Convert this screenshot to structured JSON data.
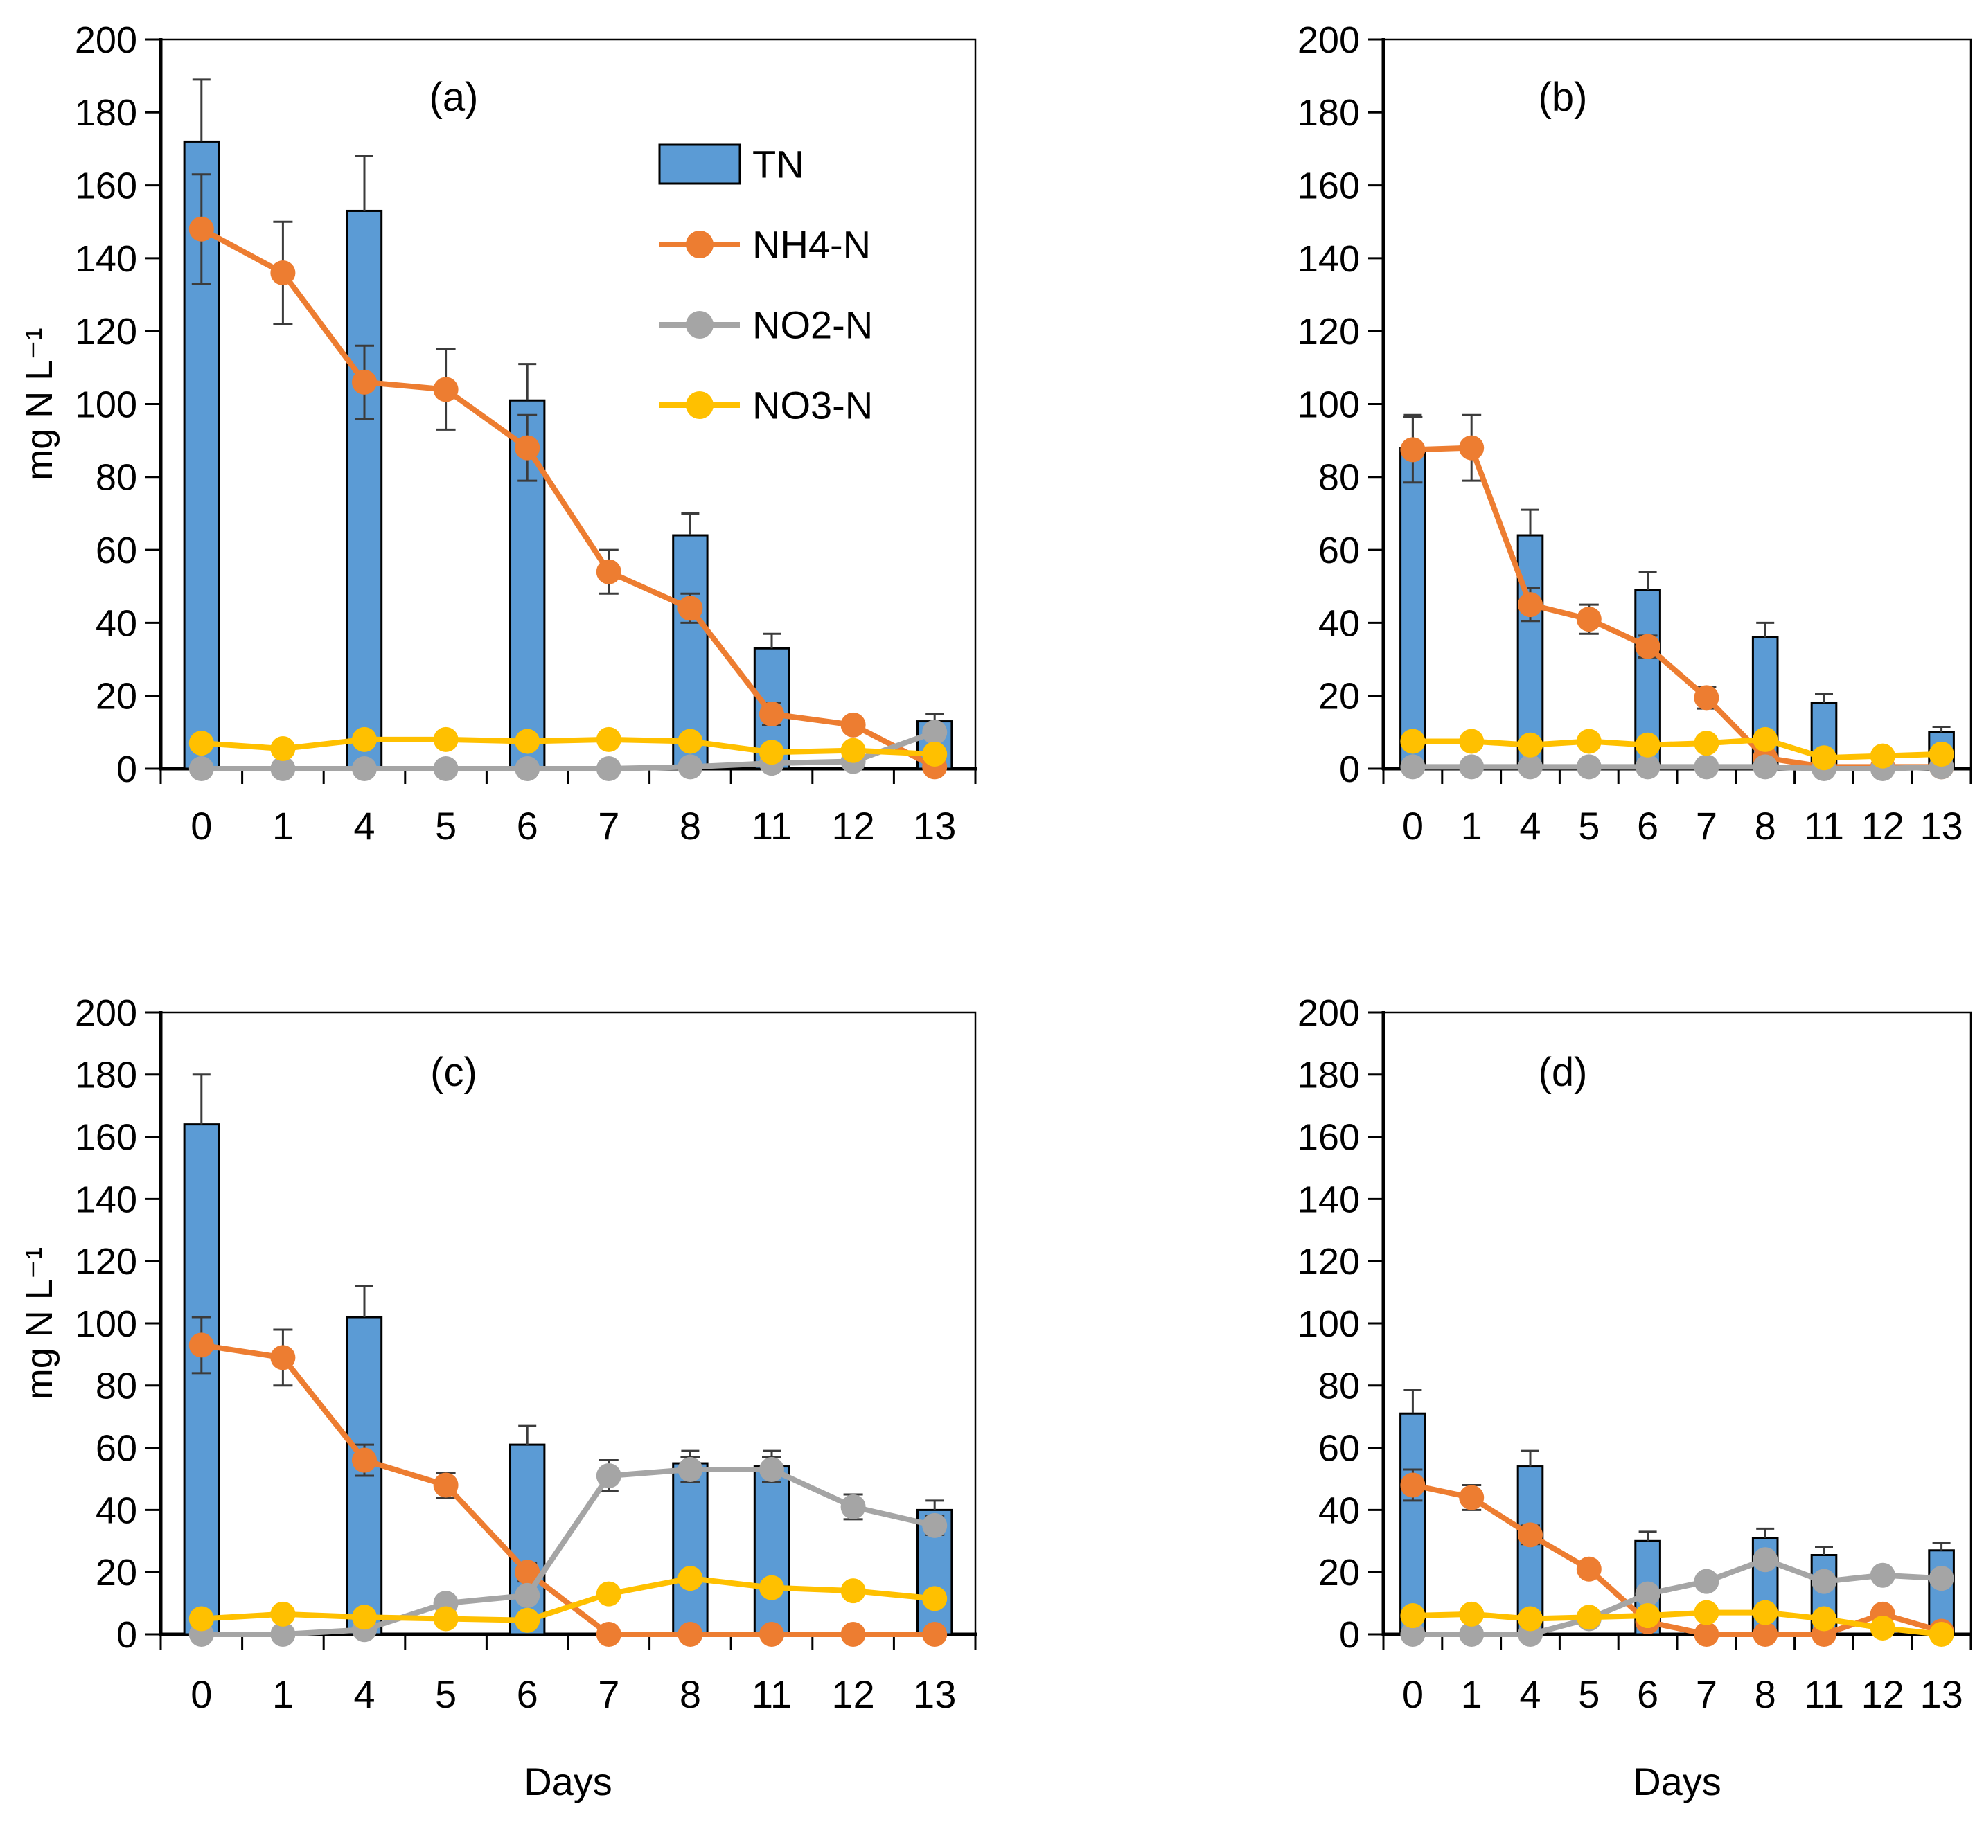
{
  "figure": {
    "background": "#ffffff",
    "description": "Four-panel nitrogen species chart: TN bars with NH4-N, NO2-N, NO3-N lines versus days"
  },
  "colors": {
    "tn": "#5B9BD5",
    "tn_border": "#000000",
    "nh4": "#ED7D31",
    "no2": "#A5A5A5",
    "no3": "#FFC000",
    "error_bar": "#3B3B3B",
    "axis": "#000000",
    "text": "#000000"
  },
  "legend": {
    "items": [
      {
        "series": "tn",
        "label": "TN"
      },
      {
        "series": "nh4",
        "label": "NH4-N"
      },
      {
        "series": "no2",
        "label": "NO2-N"
      },
      {
        "series": "no3",
        "label": "NO3-N"
      }
    ]
  },
  "axes": {
    "y_min": 0,
    "y_max": 200,
    "y_step": 20,
    "y_label": "mg N L⁻¹",
    "x_label": "Days",
    "x_categories": [
      "0",
      "1",
      "4",
      "5",
      "6",
      "7",
      "8",
      "11",
      "12",
      "13"
    ]
  },
  "chart_data": [
    {
      "panel": "(a)",
      "type": "bar+line",
      "categories": [
        "0",
        "1",
        "4",
        "5",
        "6",
        "7",
        "8",
        "11",
        "12",
        "13"
      ],
      "ylim": [
        0,
        200
      ],
      "ylabel": "mg N L⁻¹",
      "xlabel": null,
      "legend_shown": true,
      "series": [
        {
          "name": "TN",
          "type": "bar",
          "values": [
            172,
            null,
            153,
            null,
            101,
            null,
            64,
            33,
            null,
            13
          ],
          "errors": [
            17,
            null,
            15,
            null,
            10,
            null,
            6,
            4,
            null,
            2
          ]
        },
        {
          "name": "NH4-N",
          "type": "line",
          "values": [
            148,
            136,
            106,
            104,
            88,
            54,
            44,
            15,
            12,
            0.5
          ],
          "errors": [
            15,
            14,
            10,
            11,
            9,
            6,
            4,
            3,
            0,
            0
          ]
        },
        {
          "name": "NO2-N",
          "type": "line",
          "values": [
            0,
            0,
            0,
            0,
            0,
            0,
            0.5,
            1.5,
            2,
            10
          ],
          "errors": [
            0,
            0,
            0,
            0,
            0,
            0,
            0,
            0,
            0,
            0
          ]
        },
        {
          "name": "NO3-N",
          "type": "line",
          "values": [
            7,
            5.5,
            8,
            8,
            7.5,
            8,
            7.5,
            4.5,
            5,
            4
          ],
          "errors": [
            0,
            0,
            0,
            0,
            0,
            0,
            0,
            0,
            0,
            0
          ]
        }
      ]
    },
    {
      "panel": "(b)",
      "type": "bar+line",
      "categories": [
        "0",
        "1",
        "4",
        "5",
        "6",
        "7",
        "8",
        "11",
        "12",
        "13"
      ],
      "ylim": [
        0,
        200
      ],
      "ylabel": null,
      "xlabel": null,
      "legend_shown": false,
      "series": [
        {
          "name": "TN",
          "type": "bar",
          "values": [
            88,
            null,
            64,
            null,
            49,
            null,
            36,
            18,
            null,
            10
          ],
          "errors": [
            9,
            null,
            7,
            null,
            5,
            null,
            4,
            2.5,
            null,
            1.5
          ]
        },
        {
          "name": "NH4-N",
          "type": "line",
          "values": [
            87.5,
            88,
            45,
            41,
            33.5,
            19.5,
            3,
            0.5,
            0.5,
            0.5
          ],
          "errors": [
            9,
            9,
            4.5,
            4,
            3,
            3,
            0,
            0,
            0,
            0
          ]
        },
        {
          "name": "NO2-N",
          "type": "line",
          "values": [
            0.5,
            0.5,
            0.5,
            0.5,
            0.5,
            0.5,
            0.5,
            0,
            0,
            0.5
          ],
          "errors": [
            0,
            0,
            0,
            0,
            0,
            0,
            0,
            0,
            0,
            0
          ]
        },
        {
          "name": "NO3-N",
          "type": "line",
          "values": [
            7.5,
            7.5,
            6.5,
            7.5,
            6.5,
            7,
            8,
            3,
            3.5,
            4
          ],
          "errors": [
            0,
            0,
            0,
            0,
            0,
            0,
            0,
            0,
            0,
            0
          ]
        }
      ]
    },
    {
      "panel": "(c)",
      "type": "bar+line",
      "categories": [
        "0",
        "1",
        "4",
        "5",
        "6",
        "7",
        "8",
        "11",
        "12",
        "13"
      ],
      "ylim": [
        0,
        200
      ],
      "ylabel": "mg N L⁻¹",
      "xlabel": "Days",
      "legend_shown": false,
      "series": [
        {
          "name": "TN",
          "type": "bar",
          "values": [
            164,
            null,
            102,
            null,
            61,
            null,
            55,
            54,
            null,
            40
          ],
          "errors": [
            16,
            null,
            10,
            null,
            6,
            null,
            4,
            5,
            null,
            3
          ]
        },
        {
          "name": "NH4-N",
          "type": "line",
          "values": [
            93,
            89,
            56,
            48,
            20,
            0,
            0,
            0,
            0,
            0
          ],
          "errors": [
            9,
            9,
            5,
            4,
            3,
            0,
            0,
            0,
            0,
            0
          ]
        },
        {
          "name": "NO2-N",
          "type": "line",
          "values": [
            0,
            0,
            1.5,
            10,
            12.5,
            51,
            53,
            53,
            41,
            35
          ],
          "errors": [
            0,
            0,
            0,
            0,
            0,
            5,
            4,
            4,
            4,
            3
          ]
        },
        {
          "name": "NO3-N",
          "type": "line",
          "values": [
            5,
            6.5,
            5.5,
            5,
            4.5,
            13,
            18,
            15,
            14,
            11.5
          ],
          "errors": [
            0,
            0,
            0,
            0,
            0,
            0,
            0,
            0,
            0,
            0
          ]
        }
      ]
    },
    {
      "panel": "(d)",
      "type": "bar+line",
      "categories": [
        "0",
        "1",
        "4",
        "5",
        "6",
        "7",
        "8",
        "11",
        "12",
        "13"
      ],
      "ylim": [
        0,
        200
      ],
      "ylabel": null,
      "xlabel": "Days",
      "legend_shown": false,
      "series": [
        {
          "name": "TN",
          "type": "bar",
          "values": [
            71,
            null,
            54,
            null,
            30,
            null,
            31,
            25.5,
            null,
            27
          ],
          "errors": [
            7.5,
            null,
            5,
            null,
            3,
            null,
            3,
            2.5,
            null,
            2.5
          ]
        },
        {
          "name": "NH4-N",
          "type": "line",
          "values": [
            48,
            44,
            32,
            21,
            4,
            0,
            0,
            0,
            6.5,
            1
          ],
          "errors": [
            5,
            4,
            3,
            2,
            0,
            0,
            0,
            0,
            0,
            0
          ]
        },
        {
          "name": "NO2-N",
          "type": "line",
          "values": [
            0,
            0,
            0,
            5,
            13,
            17,
            24,
            17,
            19,
            18
          ],
          "errors": [
            0,
            0,
            0,
            0,
            0,
            0,
            0,
            0,
            0,
            0
          ]
        },
        {
          "name": "NO3-N",
          "type": "line",
          "values": [
            6,
            6.5,
            5,
            5.5,
            6,
            7,
            7,
            5,
            2,
            0
          ],
          "errors": [
            0,
            0,
            0,
            0,
            0,
            0,
            0,
            0,
            0,
            0
          ]
        }
      ]
    }
  ]
}
